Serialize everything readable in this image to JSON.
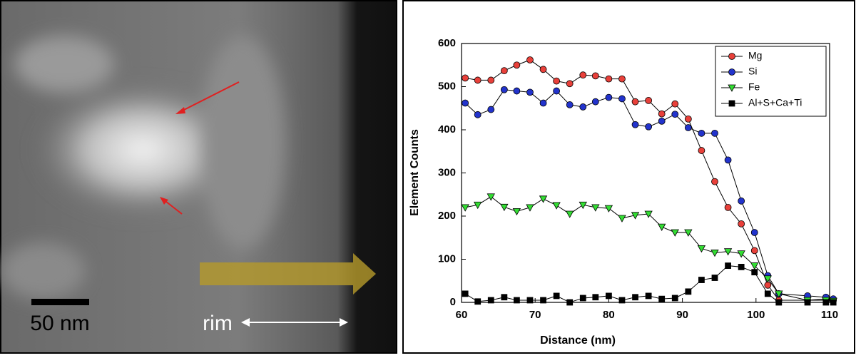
{
  "image": {
    "scale_label": "50 nm",
    "rim_label": "rim"
  },
  "chart_data": {
    "type": "line",
    "xlabel": "Distance (nm)",
    "ylabel": "Element Counts",
    "x": [
      60.5,
      62.2,
      64,
      65.8,
      67.5,
      69.3,
      71.1,
      72.9,
      74.7,
      76.5,
      78.2,
      80,
      81.8,
      83.6,
      85.4,
      87.2,
      89,
      90.8,
      92.6,
      94.4,
      96.2,
      98,
      99.8,
      101.6,
      103.1,
      107,
      109.5,
      110.5
    ],
    "series": [
      {
        "name": "Mg",
        "color": "#e8403a",
        "marker": "circle",
        "values": [
          520,
          515,
          515,
          537,
          550,
          562,
          540,
          513,
          507,
          527,
          525,
          518,
          518,
          465,
          468,
          437,
          460,
          425,
          352,
          280,
          220,
          182,
          120,
          40,
          5,
          5,
          8,
          5
        ]
      },
      {
        "name": "Si",
        "color": "#2233cc",
        "marker": "circle",
        "values": [
          462,
          435,
          447,
          493,
          490,
          487,
          462,
          490,
          458,
          453,
          465,
          475,
          472,
          412,
          407,
          420,
          436,
          405,
          392,
          392,
          330,
          235,
          162,
          62,
          20,
          15,
          12,
          8
        ]
      },
      {
        "name": "Fe",
        "color": "#33dd33",
        "marker": "triangle-down",
        "values": [
          220,
          226,
          245,
          221,
          211,
          220,
          240,
          225,
          205,
          226,
          220,
          218,
          195,
          202,
          205,
          175,
          162,
          162,
          125,
          115,
          118,
          113,
          85,
          55,
          20,
          5,
          5,
          3
        ]
      },
      {
        "name": "Al+S+Ca+Ti",
        "color": "#000000",
        "marker": "square",
        "values": [
          20,
          2,
          5,
          12,
          5,
          5,
          5,
          15,
          0,
          10,
          12,
          15,
          5,
          12,
          15,
          8,
          10,
          25,
          52,
          57,
          85,
          82,
          70,
          20,
          0,
          0,
          0,
          0
        ]
      }
    ],
    "xlim": [
      60,
      110
    ],
    "xticks": [
      60,
      70,
      80,
      90,
      100,
      110
    ],
    "ylim": [
      0,
      600
    ],
    "yticks": [
      0,
      100,
      200,
      300,
      400,
      500,
      600
    ],
    "legend": "upper right",
    "grid": false
  }
}
